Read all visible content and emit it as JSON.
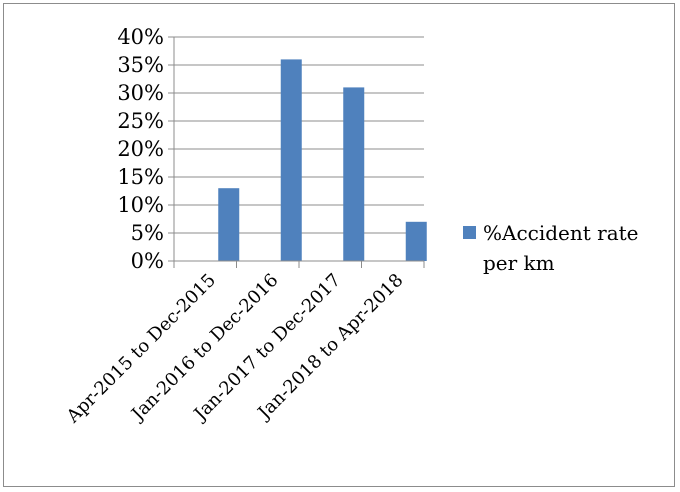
{
  "chart_data": {
    "type": "bar",
    "categories": [
      "Apr-2015 to Dec-2015",
      "Jan-2016 to Dec-2016",
      "Jan-2017 to Dec-2017",
      "Jan-2018 to Apr-2018"
    ],
    "series": [
      {
        "name": "%Accident rate per km",
        "values": [
          13,
          36,
          31,
          7
        ],
        "color": "#4f81bd"
      }
    ],
    "title": "",
    "xlabel": "",
    "ylabel": "",
    "ylim": [
      0,
      40
    ],
    "yticks": [
      "0%",
      "5%",
      "10%",
      "15%",
      "20%",
      "25%",
      "30%",
      "35%",
      "40%"
    ],
    "grid": true,
    "legend_position": "right",
    "legend_lines": [
      "%Accident rate",
      "per km"
    ]
  }
}
